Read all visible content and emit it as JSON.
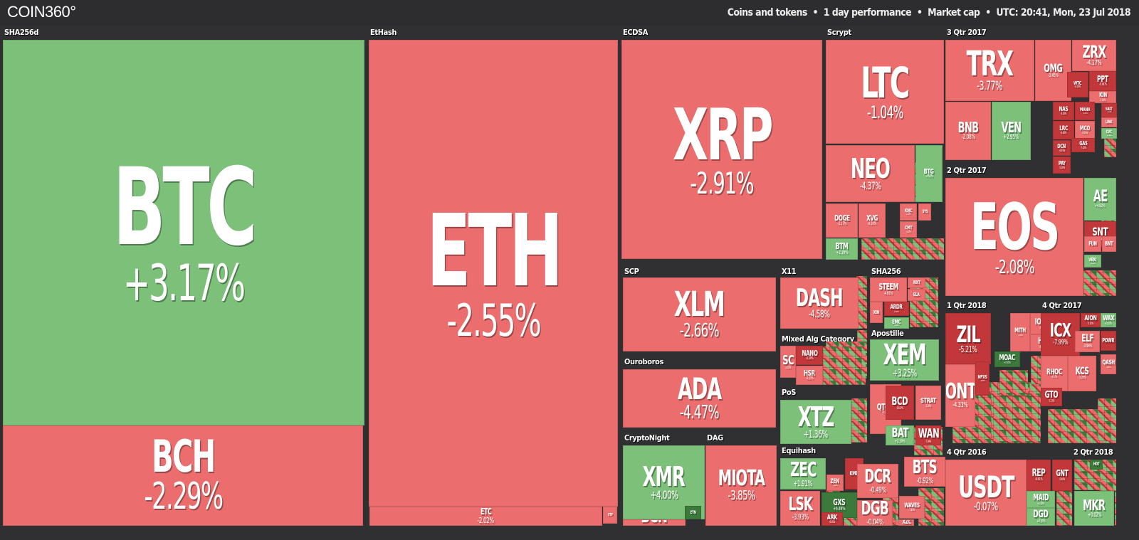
{
  "header": {
    "logo": "COIN360°",
    "filters": [
      "Coins and tokens",
      "1 day performance",
      "Market cap",
      "UTC: 20:41, Mon, 23 Jul 2018"
    ],
    "separator": "•"
  },
  "colors": {
    "up": "#7cc07a",
    "up_strong": "#3c7a3c",
    "down": "#ec6d6d",
    "down_strong": "#c2383a",
    "background": "#303033"
  },
  "categories": {
    "sha256d": "SHA256d",
    "ethash": "EtHash",
    "ecdsa": "ECDSA",
    "scrypt": "Scrypt",
    "q3_2017": "3 Qtr 2017",
    "scp": "SCP",
    "x11": "X11",
    "sha256": "SHA256",
    "ouroboros": "Ouroboros",
    "mixed": "Mixed Alg Category",
    "apostille": "Apostille",
    "pos": "PoS",
    "cryptonight": "CryptoNight",
    "dag": "DAG",
    "equihash": "Equihash",
    "q2_2017": "2 Qtr 2017",
    "q1_2018": "1 Qtr 2018",
    "q4_2017": "4 Qtr 2017",
    "q4_2016": "4 Qtr 2016",
    "q2_2018": "2 Qtr 2018"
  },
  "coins": {
    "btc": {
      "symbol": "BTC",
      "change": "+3.17%"
    },
    "bch": {
      "symbol": "BCH",
      "change": "-2.29%"
    },
    "eth": {
      "symbol": "ETH",
      "change": "-2.55%"
    },
    "etc": {
      "symbol": "ETC",
      "change": "-2.02%"
    },
    "etp": {
      "symbol": "ETP",
      "change": ""
    },
    "xrp": {
      "symbol": "XRP",
      "change": "-2.91%"
    },
    "ltc": {
      "symbol": "LTC",
      "change": "-1.04%"
    },
    "neo": {
      "symbol": "NEO",
      "change": "-4.37%"
    },
    "btg": {
      "symbol": "BTG",
      "change": "-4.52%"
    },
    "doge": {
      "symbol": "DOGE",
      "change": "-1.17%"
    },
    "xvg": {
      "symbol": "XVG",
      "change": "-0.10%"
    },
    "knc": {
      "symbol": "KNC",
      "change": "-2.3%"
    },
    "cmt": {
      "symbol": "CMT",
      "change": "-3.5%"
    },
    "sys": {
      "symbol": "SYS",
      "change": ""
    },
    "btm": {
      "symbol": "BTM",
      "change": "+2.39%"
    },
    "trx": {
      "symbol": "TRX",
      "change": "-3.77%"
    },
    "omg": {
      "symbol": "OMG",
      "change": "-3.45%"
    },
    "zrx": {
      "symbol": "ZRX",
      "change": "-4.17%"
    },
    "ppt": {
      "symbol": "PPT",
      "change": "-5.91%"
    },
    "wtc": {
      "symbol": "WTC",
      "change": "-6.54%"
    },
    "kin": {
      "symbol": "KIN",
      "change": "-1.14%"
    },
    "bnb": {
      "symbol": "BNB",
      "change": "-2.08%"
    },
    "ven": {
      "symbol": "VEN",
      "change": "+2.95%"
    },
    "nas": {
      "symbol": "NAS",
      "change": "-6.16%"
    },
    "mana": {
      "symbol": "MANA",
      "change": "-3.24%"
    },
    "lrc": {
      "symbol": "LRC",
      "change": "-6.60%"
    },
    "mco": {
      "symbol": "MCO",
      "change": "-4.01%"
    },
    "dcn": {
      "symbol": "DCN",
      "change": "-6.91%"
    },
    "gas": {
      "symbol": "GAS",
      "change": "-7.02%"
    },
    "pay": {
      "symbol": "PAY",
      "change": "-5.30%"
    },
    "salt": {
      "symbol": "SALT",
      "change": "-6.14%"
    },
    "link": {
      "symbol": "LINK",
      "change": ""
    },
    "cvc": {
      "symbol": "CVC",
      "change": "+1.14%"
    },
    "eos": {
      "symbol": "EOS",
      "change": "-2.08%"
    },
    "ae": {
      "symbol": "AE",
      "change": "+4.82%"
    },
    "snt": {
      "symbol": "SNT",
      "change": "-5.74%"
    },
    "fun": {
      "symbol": "FUN",
      "change": ""
    },
    "bnt": {
      "symbol": "BNT",
      "change": ""
    },
    "veri": {
      "symbol": "VERI",
      "change": "+3.24%"
    },
    "xlm": {
      "symbol": "XLM",
      "change": "-2.66%"
    },
    "dash": {
      "symbol": "DASH",
      "change": "-4.58%"
    },
    "steem": {
      "symbol": "STEEM",
      "change": "-4.61%"
    },
    "nxt": {
      "symbol": "NXT",
      "change": ""
    },
    "ela": {
      "symbol": "ELA",
      "change": ""
    },
    "ardr": {
      "symbol": "ARDR",
      "change": "-10.20%"
    },
    "xin": {
      "symbol": "XIN",
      "change": ""
    },
    "emc": {
      "symbol": "EMC",
      "change": "+0.62%"
    },
    "ada": {
      "symbol": "ADA",
      "change": "-4.47%"
    },
    "sc": {
      "symbol": "SC",
      "change": "-2.52%"
    },
    "nano": {
      "symbol": "NANO",
      "change": "-5.29%"
    },
    "hsr": {
      "symbol": "HSR",
      "change": "-2.23%"
    },
    "xem": {
      "symbol": "XEM",
      "change": "+3.25%"
    },
    "xtz": {
      "symbol": "XTZ",
      "change": "+1.36%"
    },
    "qtum": {
      "symbol": "QTUM",
      "change": "-2.22%"
    },
    "bcd": {
      "symbol": "BCD",
      "change": "-10.87%"
    },
    "strat": {
      "symbol": "STRAT",
      "change": "-2.26%"
    },
    "bat": {
      "symbol": "BAT",
      "change": "+2.39%"
    },
    "wan": {
      "symbol": "WAN",
      "change": "-7.39%"
    },
    "xmr": {
      "symbol": "XMR",
      "change": "+4.00%"
    },
    "bcn": {
      "symbol": "BCN",
      "change": "-3.46%"
    },
    "etn": {
      "symbol": "ETN",
      "change": ""
    },
    "miota": {
      "symbol": "MIOTA",
      "change": "-3.85%"
    },
    "zec": {
      "symbol": "ZEC",
      "change": "+1.91%"
    },
    "zen": {
      "symbol": "ZEN",
      "change": "-3.08%"
    },
    "kmd": {
      "symbol": "KMD",
      "change": ""
    },
    "lsk": {
      "symbol": "LSK",
      "change": "-3.93%"
    },
    "gxs": {
      "symbol": "GXS",
      "change": "+6.49%"
    },
    "ark": {
      "symbol": "ARK",
      "change": "-6.65%"
    },
    "dcr": {
      "symbol": "DCR",
      "change": "-0.49%"
    },
    "bts": {
      "symbol": "BTS",
      "change": "-0.92%"
    },
    "dgb": {
      "symbol": "DGB",
      "change": "-0.04%"
    },
    "waves": {
      "symbol": "WAVES",
      "change": "-1.83%"
    },
    "xzc": {
      "symbol": "XZC",
      "change": ""
    },
    "zil": {
      "symbol": "ZIL",
      "change": "-5.21%"
    },
    "mith": {
      "symbol": "MITH",
      "change": "-4.22%"
    },
    "iost": {
      "symbol": "IOST",
      "change": "-4.32%"
    },
    "ht": {
      "symbol": "HT",
      "change": "-4.66%"
    },
    "ont": {
      "symbol": "ONT",
      "change": "-4.33%"
    },
    "npxs": {
      "symbol": "NPXS",
      "change": "-6.30%"
    },
    "moac": {
      "symbol": "MOAC",
      "change": "+7.07%"
    },
    "icx": {
      "symbol": "ICX",
      "change": "-7.99%"
    },
    "aion": {
      "symbol": "AION",
      "change": "-5.20%"
    },
    "wax": {
      "symbol": "WAX",
      "change": "+3.23%"
    },
    "elf": {
      "symbol": "ELF",
      "change": "-3.96%"
    },
    "powr": {
      "symbol": "POWR",
      "change": ""
    },
    "rhoc": {
      "symbol": "RHOC",
      "change": "-4.17%"
    },
    "kcs": {
      "symbol": "KCS",
      "change": "-3.20%"
    },
    "qash": {
      "symbol": "QASH",
      "change": "-6.60%"
    },
    "gto": {
      "symbol": "GTO",
      "change": "-7.17%"
    },
    "usdt": {
      "symbol": "USDT",
      "change": "-0.07%"
    },
    "rep": {
      "symbol": "REP",
      "change": "-6.61%"
    },
    "gnt": {
      "symbol": "GNT",
      "change": "-5.40%"
    },
    "maid": {
      "symbol": "MAID",
      "change": "+2.30%"
    },
    "dgd": {
      "symbol": "DGD",
      "change": "+0.30%"
    },
    "mkr": {
      "symbol": "MKR",
      "change": "+0.02%"
    },
    "hot": {
      "symbol": "HOT",
      "change": ""
    }
  }
}
